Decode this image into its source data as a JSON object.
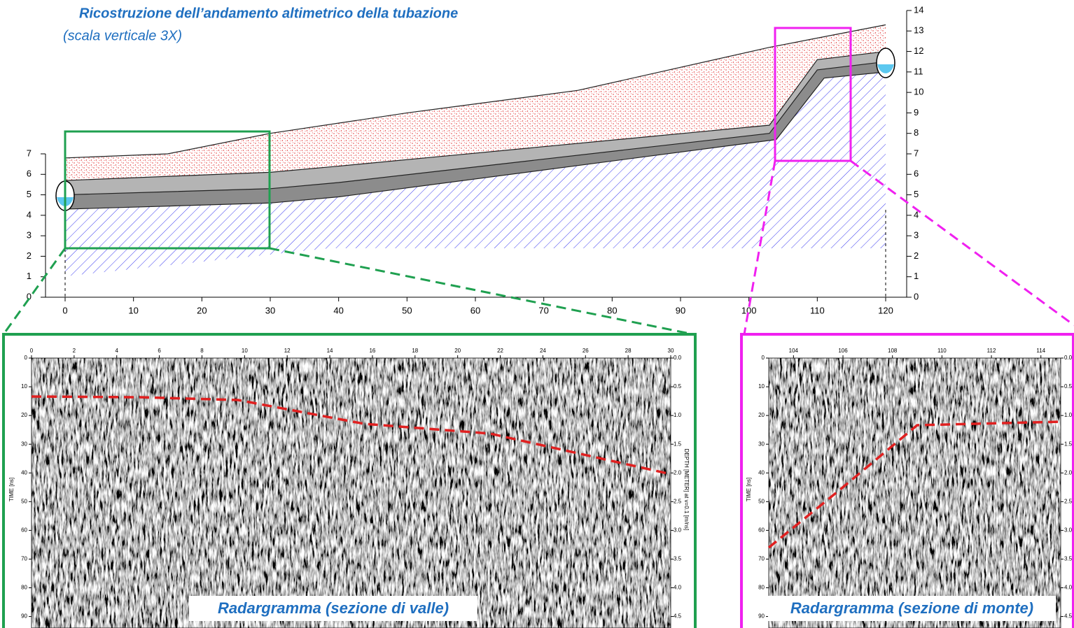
{
  "profile": {
    "title": "Ricostruzione dell’andamento altimetrico della tubazione",
    "subtitle": "(scala verticale 3X)",
    "xlim": [
      0,
      120
    ],
    "ylim": [
      0,
      14
    ],
    "xticks": [
      0,
      10,
      20,
      30,
      40,
      50,
      60,
      70,
      80,
      90,
      100,
      110,
      120
    ],
    "yticks_left": [
      0,
      1,
      2,
      3,
      4,
      5,
      6,
      7
    ],
    "yticks_right": [
      0,
      1,
      2,
      3,
      4,
      5,
      6,
      7,
      8,
      9,
      10,
      11,
      12,
      13,
      14
    ],
    "ground": {
      "x": [
        0,
        15,
        30,
        50,
        75,
        103,
        120
      ],
      "values": [
        6.8,
        7.0,
        8.0,
        9.0,
        10.1,
        12.2,
        13.3
      ]
    },
    "pipe_top": {
      "x": [
        0,
        30,
        40,
        103,
        110,
        120
      ],
      "values": [
        5.7,
        6.1,
        6.4,
        8.4,
        11.6,
        12.0
      ]
    },
    "pipe_mid": {
      "x": [
        0,
        30,
        40,
        103,
        110,
        120
      ],
      "values": [
        5.0,
        5.3,
        5.6,
        8.0,
        11.1,
        11.5
      ]
    },
    "pipe_bottom": {
      "x": [
        0,
        30,
        40,
        104,
        111,
        120
      ],
      "values": [
        4.3,
        4.6,
        4.9,
        7.7,
        10.7,
        11.0
      ]
    }
  },
  "radargrams": [
    {
      "label": "Radargramma (sezione di valle)",
      "time_axis_label": "TIME [ns]",
      "depth_axis_label": "DEPTH [METER] at v=0.1 [m/ns]",
      "xlim": [
        0,
        30
      ],
      "xticks": [
        0,
        2,
        4,
        6,
        8,
        10,
        12,
        14,
        16,
        18,
        20,
        22,
        24,
        26,
        28,
        30
      ],
      "tlim": [
        0,
        94
      ],
      "time_ticks": [
        0,
        10,
        20,
        30,
        40,
        50,
        60,
        70,
        80,
        90
      ],
      "dlim": [
        0,
        4.7
      ],
      "depth_ticks": [
        {
          "value": 0,
          "label": "0.0"
        },
        {
          "value": 0.5,
          "label": "0.5"
        },
        {
          "value": 1,
          "label": "1.0"
        },
        {
          "value": 1.5,
          "label": "1.5"
        },
        {
          "value": 2,
          "label": "2.0"
        },
        {
          "value": 2.5,
          "label": "2.5"
        },
        {
          "value": 3,
          "label": "3.0"
        },
        {
          "value": 3.5,
          "label": "3.5"
        },
        {
          "value": 4,
          "label": "4.0"
        },
        {
          "value": 4.5,
          "label": "4.5"
        }
      ]
    },
    {
      "label": "Radargramma (sezione di monte)",
      "time_axis_label": "TIME [ns]",
      "xlim": [
        103,
        114.8
      ],
      "xticks": [
        104,
        106,
        108,
        110,
        112,
        114
      ],
      "tlim": [
        0,
        94
      ],
      "time_ticks": [
        0,
        10,
        20,
        30,
        40,
        50,
        60,
        70,
        80,
        90
      ],
      "dlim": [
        0,
        4.7
      ],
      "depth_ticks": [
        {
          "value": 0,
          "label": "0.0"
        },
        {
          "value": 0.5,
          "label": "0.5"
        },
        {
          "value": 1,
          "label": "1.0"
        },
        {
          "value": 1.5,
          "label": "1.5"
        },
        {
          "value": 2,
          "label": "2.0"
        },
        {
          "value": 2.5,
          "label": "2.5"
        },
        {
          "value": 3,
          "label": "3.0"
        },
        {
          "value": 3.5,
          "label": "3.5"
        },
        {
          "value": 4,
          "label": "4.0"
        },
        {
          "value": 4.5,
          "label": "4.5"
        }
      ]
    }
  ]
}
